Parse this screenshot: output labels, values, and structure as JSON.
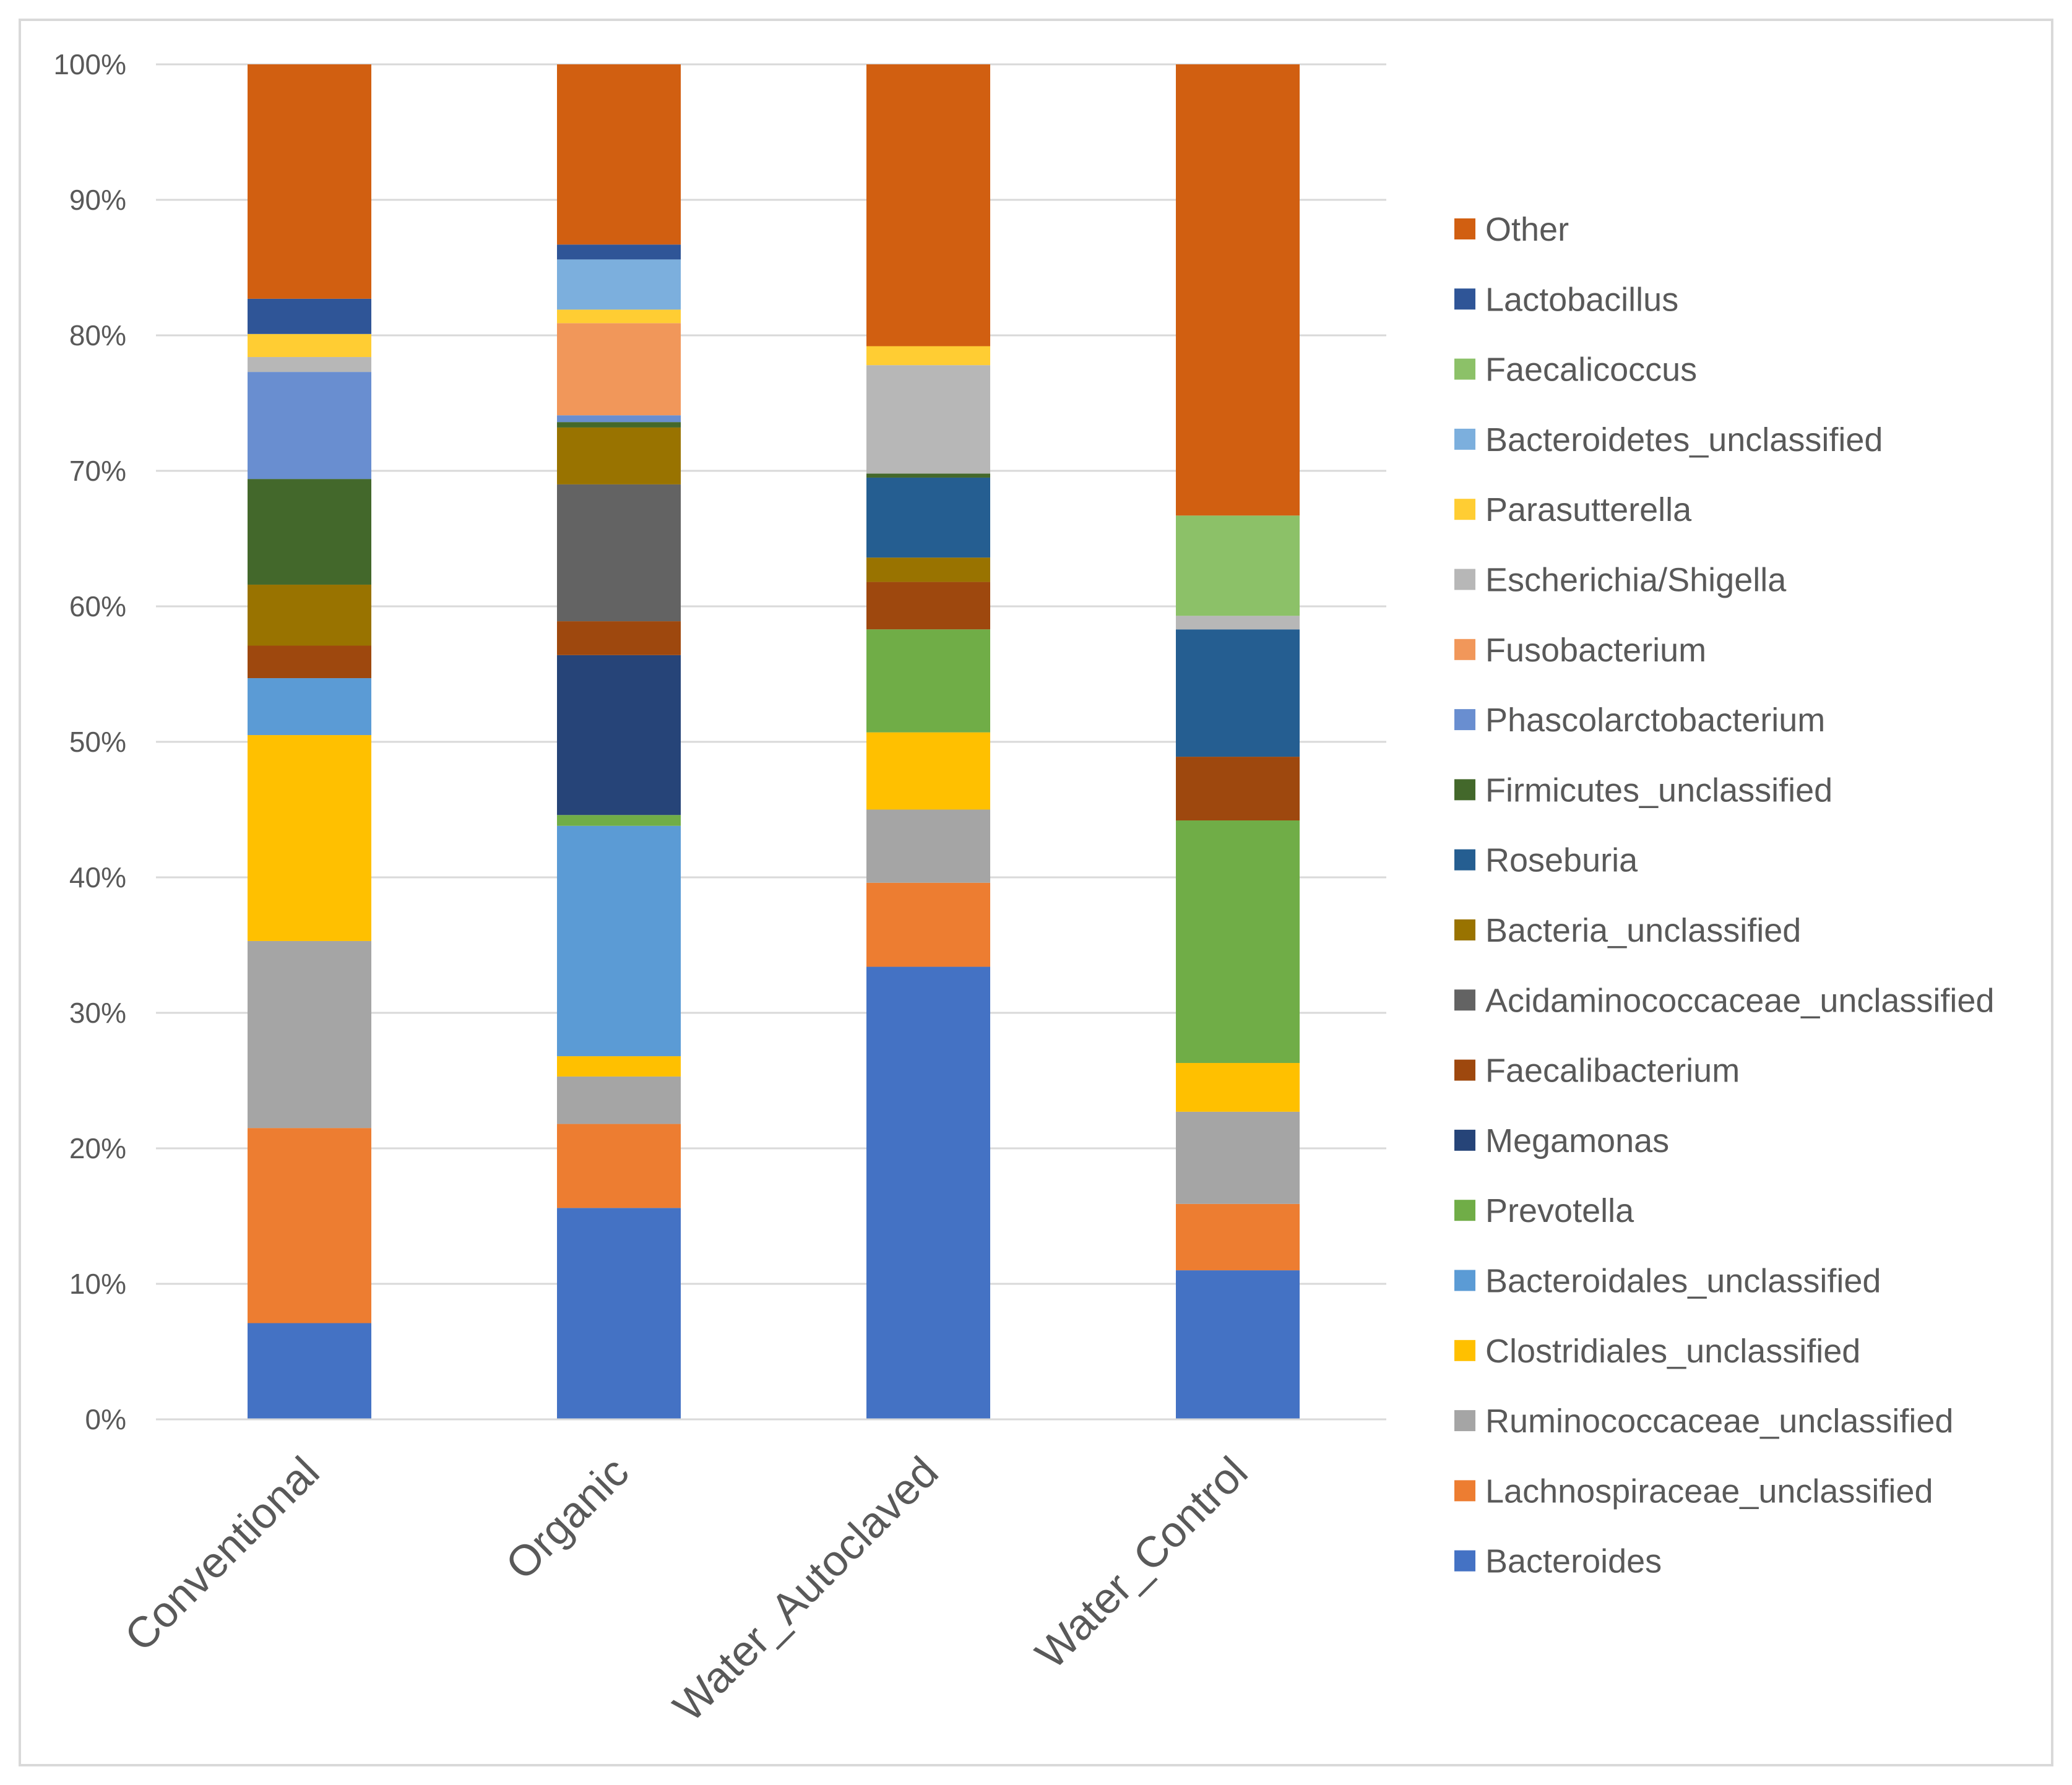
{
  "chart_data": {
    "type": "bar",
    "stacked": true,
    "normalized": true,
    "title": "",
    "xlabel": "",
    "ylabel": "",
    "ylim": [
      0,
      100
    ],
    "yticks": [
      "0%",
      "10%",
      "20%",
      "30%",
      "40%",
      "50%",
      "60%",
      "70%",
      "80%",
      "90%",
      "100%"
    ],
    "grid": true,
    "legend_position": "right",
    "categories": [
      "Conventional",
      "Organic",
      "Water_Autoclaved",
      "Water_Control"
    ],
    "series": [
      {
        "name": "Bacteroides",
        "color": "#4472C4",
        "values": [
          7.1,
          15.6,
          33.4,
          11.0
        ]
      },
      {
        "name": "Lachnospiraceae_unclassified",
        "color": "#ED7D31",
        "values": [
          14.4,
          6.2,
          6.2,
          4.9
        ]
      },
      {
        "name": "Ruminococcaceae_unclassified",
        "color": "#A5A5A5",
        "values": [
          13.8,
          3.5,
          5.4,
          6.8
        ]
      },
      {
        "name": "Clostridiales_unclassified",
        "color": "#FFC000",
        "values": [
          15.2,
          1.5,
          5.7,
          3.6
        ]
      },
      {
        "name": "Bacteroidales_unclassified",
        "color": "#5B9BD5",
        "values": [
          4.2,
          17.0,
          0.0,
          0.0
        ]
      },
      {
        "name": "Prevotella",
        "color": "#70AD47",
        "values": [
          0.0,
          0.8,
          7.6,
          17.9
        ]
      },
      {
        "name": "Megamonas",
        "color": "#264478",
        "values": [
          0.0,
          11.8,
          0.0,
          0.0
        ]
      },
      {
        "name": "Faecalibacterium",
        "color": "#9E480E",
        "values": [
          2.4,
          2.5,
          3.5,
          4.7
        ]
      },
      {
        "name": "Acidaminococcaceae_unclassified",
        "color": "#636363",
        "values": [
          0.0,
          10.1,
          0.0,
          0.0
        ]
      },
      {
        "name": "Bacteria_unclassified",
        "color": "#997300",
        "values": [
          4.5,
          4.2,
          1.8,
          0.0
        ]
      },
      {
        "name": "Roseburia",
        "color": "#255E91",
        "values": [
          0.0,
          0.0,
          5.9,
          9.4
        ]
      },
      {
        "name": "Firmicutes_unclassified",
        "color": "#43682B",
        "values": [
          7.8,
          0.4,
          0.3,
          0.0
        ]
      },
      {
        "name": "Phascolarctobacterium",
        "color": "#698ED0",
        "values": [
          7.9,
          0.5,
          0.0,
          0.0
        ]
      },
      {
        "name": "Fusobacterium",
        "color": "#F1975A",
        "values": [
          0.0,
          6.8,
          0.0,
          0.0
        ]
      },
      {
        "name": "Escherichia/Shigella",
        "color": "#B7B7B7",
        "values": [
          1.1,
          0.0,
          8.0,
          1.0
        ]
      },
      {
        "name": "Parasutterella",
        "color": "#FFCD33",
        "values": [
          1.7,
          1.0,
          1.4,
          0.0
        ]
      },
      {
        "name": "Bacteroidetes_unclassified",
        "color": "#7CAFDD",
        "values": [
          0.0,
          3.7,
          0.0,
          0.0
        ]
      },
      {
        "name": "Faecalicoccus",
        "color": "#8CC168",
        "values": [
          0.0,
          0.0,
          0.0,
          7.4
        ]
      },
      {
        "name": "Lactobacillus",
        "color": "#2F5597",
        "values": [
          2.6,
          1.1,
          0.0,
          0.0
        ]
      },
      {
        "name": "Other",
        "color": "#D15F11",
        "values": [
          17.3,
          13.3,
          20.8,
          33.3
        ]
      }
    ]
  }
}
